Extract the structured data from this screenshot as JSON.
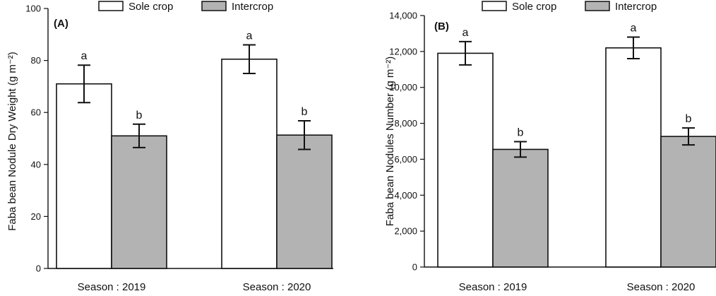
{
  "chart_data": [
    {
      "type": "bar",
      "panel_label": "(A)",
      "categories": [
        "Season : 2019",
        "Season : 2020"
      ],
      "series": [
        {
          "name": "Sole crop",
          "color": "#ffffff",
          "values": [
            71,
            80.5
          ],
          "errors": [
            7.2,
            5.5
          ],
          "letters": [
            "a",
            "a"
          ]
        },
        {
          "name": "Intercrop",
          "color": "#b3b3b3",
          "values": [
            51,
            51.3
          ],
          "errors": [
            4.5,
            5.5
          ],
          "letters": [
            "b",
            "b"
          ]
        }
      ],
      "ylabel": "Faba bean Nodule Dry Weight (g m⁻²)",
      "ylim": [
        0,
        100
      ],
      "yticks": [
        0,
        20,
        40,
        60,
        80,
        100
      ],
      "ytick_labels": [
        "0",
        "20",
        "40",
        "60",
        "80",
        "100"
      ],
      "legend": "top"
    },
    {
      "type": "bar",
      "panel_label": "(B)",
      "categories": [
        "Season : 2019",
        "Season : 2020"
      ],
      "series": [
        {
          "name": "Sole crop",
          "color": "#ffffff",
          "values": [
            11900,
            12200
          ],
          "errors": [
            650,
            600
          ],
          "letters": [
            "a",
            "a"
          ]
        },
        {
          "name": "Intercrop",
          "color": "#b3b3b3",
          "values": [
            6550,
            7270
          ],
          "errors": [
            430,
            470
          ],
          "letters": [
            "b",
            "b"
          ]
        }
      ],
      "ylabel": "Faba bean Nodules Number (g m⁻²)",
      "ylim": [
        0,
        14000
      ],
      "yticks": [
        0,
        2000,
        4000,
        6000,
        8000,
        10000,
        12000,
        14000
      ],
      "ytick_labels": [
        "0",
        "2,000",
        "4,000",
        "6,000",
        "8,000",
        "10,000",
        "12,000",
        "14,000"
      ],
      "legend": "top"
    }
  ]
}
